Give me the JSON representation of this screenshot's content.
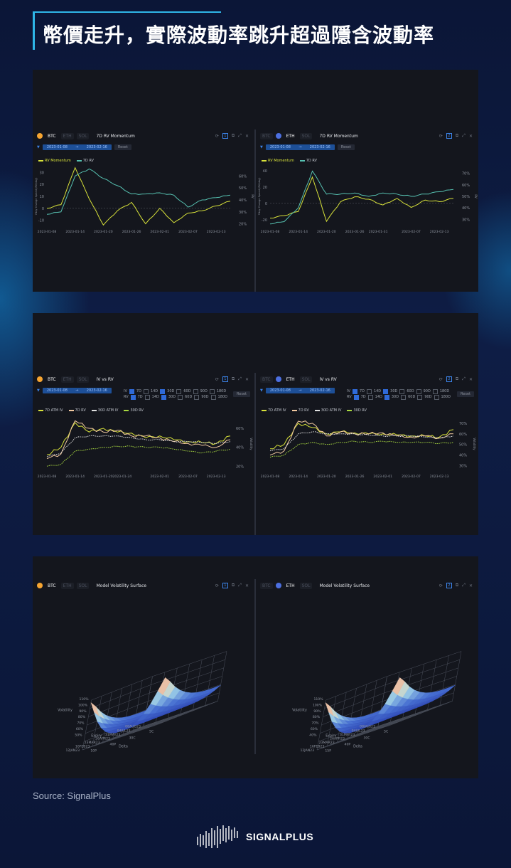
{
  "page": {
    "title": "幣價走升，實際波動率跳升超過隱含波動率",
    "source": "Source: SignalPlus",
    "brand": "SIGNALPLUS"
  },
  "colors": {
    "rv_momentum": "#d8e23a",
    "rv7": "#56c0b0",
    "iv7": "#d8e23a",
    "rv7_iv": "#f2c9a0",
    "atm30": "#e0e0e0",
    "rv30": "#a8d840",
    "btc": "#f7a531",
    "eth": "#4c6fe0",
    "accent": "#2fb6e8"
  },
  "coins": {
    "btc": "BTC",
    "eth": "ETH",
    "sol": "SOL"
  },
  "controls": {
    "reset": "Reset",
    "iv": "IV",
    "rv": "RV",
    "tenors": [
      "7D",
      "14D",
      "30D",
      "60D",
      "90D",
      "180D"
    ]
  },
  "momentum": {
    "title": "7D RV Momentum",
    "legend": [
      "RV Momentum",
      "7D RV"
    ],
    "btc": {
      "date_from": "2023-01-08",
      "date_to": "2023-02-16",
      "ylabel": "7day Change Speed (RV/day)",
      "y2label": "RV",
      "yticks": [
        "30",
        "20",
        "10",
        "0",
        "-10"
      ],
      "y2ticks": [
        "60%",
        "50%",
        "40%",
        "30%",
        "20%"
      ]
    },
    "eth": {
      "date_from": "2023-01-08",
      "date_to": "2023-02-16",
      "ylabel": "7day Change Speed (RV/day)",
      "y2label": "RV",
      "yticks": [
        "40",
        "20",
        "0",
        "-20"
      ],
      "y2ticks": [
        "70%",
        "60%",
        "50%",
        "40%",
        "30%"
      ]
    }
  },
  "ivrv": {
    "title": "IV vs RV",
    "legend": [
      "7D ATM IV",
      "7D RV",
      "30D ATM IV",
      "30D RV"
    ],
    "btc": {
      "date_from": "2023-01-08",
      "date_to": "2023-02-16",
      "y2label": "Volatility",
      "y2ticks": [
        "60%",
        "40%",
        "20%"
      ]
    },
    "eth": {
      "date_from": "2023-01-08",
      "date_to": "2023-02-16",
      "y2label": "Volatility",
      "y2ticks": [
        "70%",
        "60%",
        "50%",
        "40%",
        "30%"
      ]
    }
  },
  "surface": {
    "title": "Model Volatility Surface",
    "btc": {
      "vol_ticks": [
        "110%",
        "100%",
        "90%",
        "80%",
        "70%",
        "60%",
        "50%"
      ],
      "vol_label": "Volatility",
      "expiry_ticks": [
        "08AUG23",
        "04JUL23",
        "31MAY23",
        "26APR23",
        "23MAR23",
        "16FEB23",
        "12JAN23"
      ],
      "expiry_label": "Expiry",
      "delta_ticks": [
        "10P",
        "40P",
        "30C",
        "5C"
      ],
      "delta_label": "Delta"
    },
    "eth": {
      "vol_ticks": [
        "110%",
        "100%",
        "90%",
        "80%",
        "70%",
        "60%",
        "40%"
      ],
      "vol_label": "Volatility",
      "expiry_ticks": [
        "08AUG23",
        "04JUL23",
        "31MAY23",
        "26APR23",
        "23MAR23",
        "16FEB23",
        "12JAN23"
      ],
      "expiry_label": "Expiry",
      "delta_ticks": [
        "15P",
        "40P",
        "30C",
        "5C"
      ],
      "delta_label": "Delta"
    }
  },
  "chart_data": [
    {
      "type": "line",
      "title": "7D RV Momentum",
      "asset": "BTC",
      "x": [
        "2023-01-08",
        "2023-01-11",
        "2023-01-14",
        "2023-01-17",
        "2023-01-20",
        "2023-01-23",
        "2023-01-26",
        "2023-01-29",
        "2023-02-01",
        "2023-02-04",
        "2023-02-07",
        "2023-02-10",
        "2023-02-13",
        "2023-02-16"
      ],
      "xticks": [
        "2023-01-08",
        "2023-01-14",
        "2023-01-20",
        "2023-01-26",
        "2023-02-01",
        "2023-02-07",
        "2023-02-13"
      ],
      "series": [
        {
          "name": "RV Momentum",
          "axis": "left",
          "values": [
            0,
            3,
            34,
            8,
            -14,
            -2,
            5,
            -13,
            0,
            -12,
            -4,
            -2,
            2,
            6
          ]
        },
        {
          "name": "7D RV",
          "axis": "right",
          "values": [
            28,
            30,
            60,
            66,
            58,
            52,
            45,
            45,
            46,
            44,
            34,
            40,
            42,
            44
          ]
        }
      ]
    },
    {
      "type": "line",
      "title": "7D RV Momentum",
      "asset": "ETH",
      "x": [
        "2023-01-08",
        "2023-01-11",
        "2023-01-14",
        "2023-01-17",
        "2023-01-20",
        "2023-01-23",
        "2023-01-26",
        "2023-01-29",
        "2023-02-01",
        "2023-02-04",
        "2023-02-07",
        "2023-02-10",
        "2023-02-13",
        "2023-02-16"
      ],
      "xticks": [
        "2023-01-08",
        "2023-01-14",
        "2023-01-20",
        "2023-01-26",
        "2023-01-31",
        "2023-02-07",
        "2023-02-13"
      ],
      "series": [
        {
          "name": "RV Momentum",
          "axis": "left",
          "values": [
            -18,
            -15,
            -10,
            32,
            -22,
            2,
            8,
            5,
            -2,
            6,
            -5,
            4,
            2,
            6
          ]
        },
        {
          "name": "7D RV",
          "axis": "right",
          "values": [
            26,
            28,
            40,
            72,
            52,
            52,
            53,
            50,
            53,
            52,
            50,
            52,
            54,
            56
          ]
        }
      ]
    },
    {
      "type": "line",
      "title": "IV vs RV",
      "asset": "BTC",
      "x": [
        "2023-01-08",
        "2023-01-11",
        "2023-01-14",
        "2023-01-17",
        "2023-01-20",
        "2023-01-23",
        "2023-01-26",
        "2023-01-29",
        "2023-02-01",
        "2023-02-04",
        "2023-02-07",
        "2023-02-10",
        "2023-02-13",
        "2023-02-16"
      ],
      "xticks": [
        "2023-01-08",
        "2023-01-14",
        "2023-01-20",
        "2023-01-24",
        "2023-02-01",
        "2023-02-07",
        "2023-02-13"
      ],
      "series": [
        {
          "name": "7D ATM IV",
          "values": [
            32,
            40,
            66,
            56,
            60,
            56,
            55,
            50,
            52,
            48,
            46,
            45,
            44,
            52
          ]
        },
        {
          "name": "7D RV",
          "values": [
            28,
            33,
            68,
            60,
            56,
            58,
            52,
            52,
            50,
            46,
            44,
            42,
            40,
            48
          ]
        },
        {
          "name": "30D ATM IV",
          "values": [
            30,
            34,
            50,
            52,
            52,
            52,
            50,
            48,
            48,
            46,
            46,
            45,
            44,
            46
          ]
        },
        {
          "name": "30D RV",
          "values": [
            20,
            22,
            36,
            38,
            40,
            41,
            41,
            40,
            40,
            38,
            36,
            34,
            36,
            38
          ]
        }
      ]
    },
    {
      "type": "line",
      "title": "IV vs RV",
      "asset": "ETH",
      "x": [
        "2023-01-08",
        "2023-01-11",
        "2023-01-14",
        "2023-01-17",
        "2023-01-20",
        "2023-01-23",
        "2023-01-26",
        "2023-01-29",
        "2023-02-01",
        "2023-02-04",
        "2023-02-07",
        "2023-02-10",
        "2023-02-13",
        "2023-02-16"
      ],
      "xticks": [
        "2023-01-08",
        "2023-01-14",
        "2023-01-20",
        "2023-01-26",
        "2023-02-01",
        "2023-02-07",
        "2023-02-13"
      ],
      "series": [
        {
          "name": "7D ATM IV",
          "values": [
            46,
            50,
            70,
            66,
            60,
            62,
            61,
            60,
            60,
            59,
            58,
            58,
            57,
            64
          ]
        },
        {
          "name": "7D RV",
          "values": [
            40,
            44,
            72,
            70,
            58,
            62,
            60,
            60,
            61,
            58,
            57,
            58,
            56,
            60
          ]
        },
        {
          "name": "30D ATM IV",
          "values": [
            44,
            46,
            60,
            62,
            60,
            60,
            60,
            59,
            58,
            58,
            58,
            57,
            56,
            58
          ]
        },
        {
          "name": "30D RV",
          "values": [
            38,
            40,
            50,
            52,
            50,
            52,
            53,
            52,
            53,
            52,
            52,
            52,
            51,
            52
          ]
        }
      ]
    },
    {
      "type": "surface",
      "title": "Model Volatility Surface",
      "asset": "BTC",
      "shape": "smile",
      "min_vol": "50%",
      "max_vol": "110%"
    },
    {
      "type": "surface",
      "title": "Model Volatility Surface",
      "asset": "ETH",
      "shape": "smile",
      "min_vol": "40%",
      "max_vol": "110%"
    }
  ]
}
